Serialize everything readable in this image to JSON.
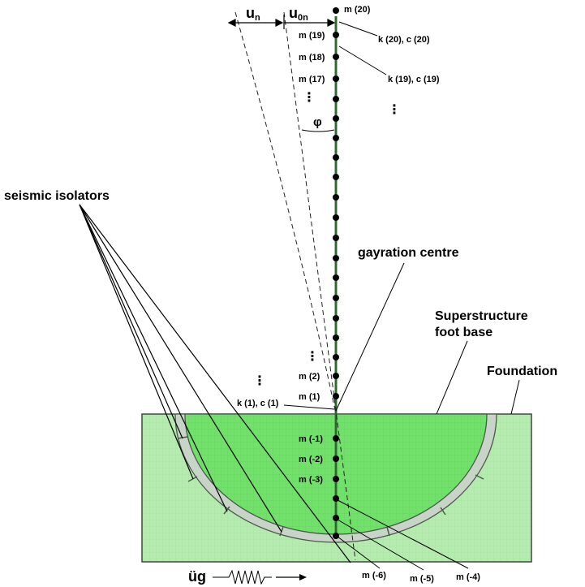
{
  "labels": {
    "un": "u",
    "un_sub": "n",
    "u0n": "u",
    "u0n_sub": "0n",
    "phi": "φ",
    "seismic_isolators": "seismic isolators",
    "gyration_centre": "gayration centre",
    "superstructure_line1": "Superstructure",
    "superstructure_line2": "foot base",
    "foundation": "Foundation",
    "ug": "üg",
    "vdots": "⋮",
    "spring_k20": "k (20), c (20)",
    "spring_k19": "k (19), c (19)",
    "spring_k1": "k (1), c (1)"
  },
  "masses_upper": [
    {
      "label": "m (20)"
    },
    {
      "label": "m (19)"
    },
    {
      "label": "m (18)"
    },
    {
      "label": "m (17)"
    },
    {
      "label": "m (2)"
    },
    {
      "label": "m (1)"
    }
  ],
  "masses_lower": [
    {
      "label": "m (-1)"
    },
    {
      "label": "m (-2)"
    },
    {
      "label": "m (-3)"
    }
  ],
  "masses_bottom": [
    {
      "label": "m (-6)"
    },
    {
      "label": "m (-5)"
    },
    {
      "label": "m (-4)"
    }
  ],
  "colors": {
    "foundation_fill": "#b6ebb0",
    "foundation_grid": "#8fcf8a",
    "superstructure_fill": "#6fe06a",
    "superstructure_grid": "#52c74e",
    "column": "#3a7a3a",
    "outline": "#2f3a2f"
  }
}
